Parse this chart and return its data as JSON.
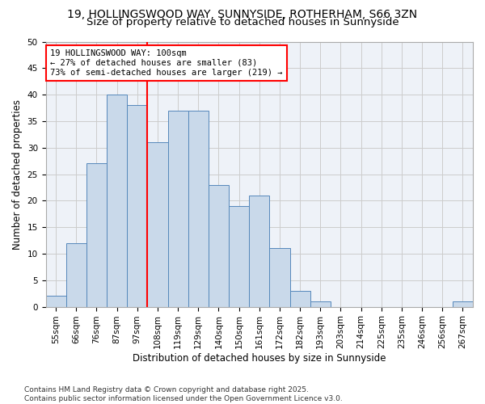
{
  "title_line1": "19, HOLLINGSWOOD WAY, SUNNYSIDE, ROTHERHAM, S66 3ZN",
  "title_line2": "Size of property relative to detached houses in Sunnyside",
  "xlabel": "Distribution of detached houses by size in Sunnyside",
  "ylabel": "Number of detached properties",
  "bar_labels": [
    "55sqm",
    "66sqm",
    "76sqm",
    "87sqm",
    "97sqm",
    "108sqm",
    "119sqm",
    "129sqm",
    "140sqm",
    "150sqm",
    "161sqm",
    "172sqm",
    "182sqm",
    "193sqm",
    "203sqm",
    "214sqm",
    "225sqm",
    "235sqm",
    "246sqm",
    "256sqm",
    "267sqm"
  ],
  "bar_values": [
    2,
    12,
    27,
    40,
    38,
    31,
    37,
    37,
    23,
    19,
    21,
    11,
    3,
    1,
    0,
    0,
    0,
    0,
    0,
    0,
    1
  ],
  "bar_color": "#c9d9ea",
  "bar_edge_color": "#5588bb",
  "vline_color": "red",
  "vline_x_index": 4,
  "annotation_line1": "19 HOLLINGSWOOD WAY: 100sqm",
  "annotation_line2": "← 27% of detached houses are smaller (83)",
  "annotation_line3": "73% of semi-detached houses are larger (219) →",
  "annotation_box_color": "red",
  "annotation_box_facecolor": "white",
  "ylim": [
    0,
    50
  ],
  "yticks": [
    0,
    5,
    10,
    15,
    20,
    25,
    30,
    35,
    40,
    45,
    50
  ],
  "grid_color": "#cccccc",
  "bg_color": "#eef2f8",
  "footer_text": "Contains HM Land Registry data © Crown copyright and database right 2025.\nContains public sector information licensed under the Open Government Licence v3.0.",
  "title_fontsize": 10,
  "subtitle_fontsize": 9.5,
  "axis_label_fontsize": 8.5,
  "tick_fontsize": 7.5,
  "annotation_fontsize": 7.5,
  "footer_fontsize": 6.5
}
